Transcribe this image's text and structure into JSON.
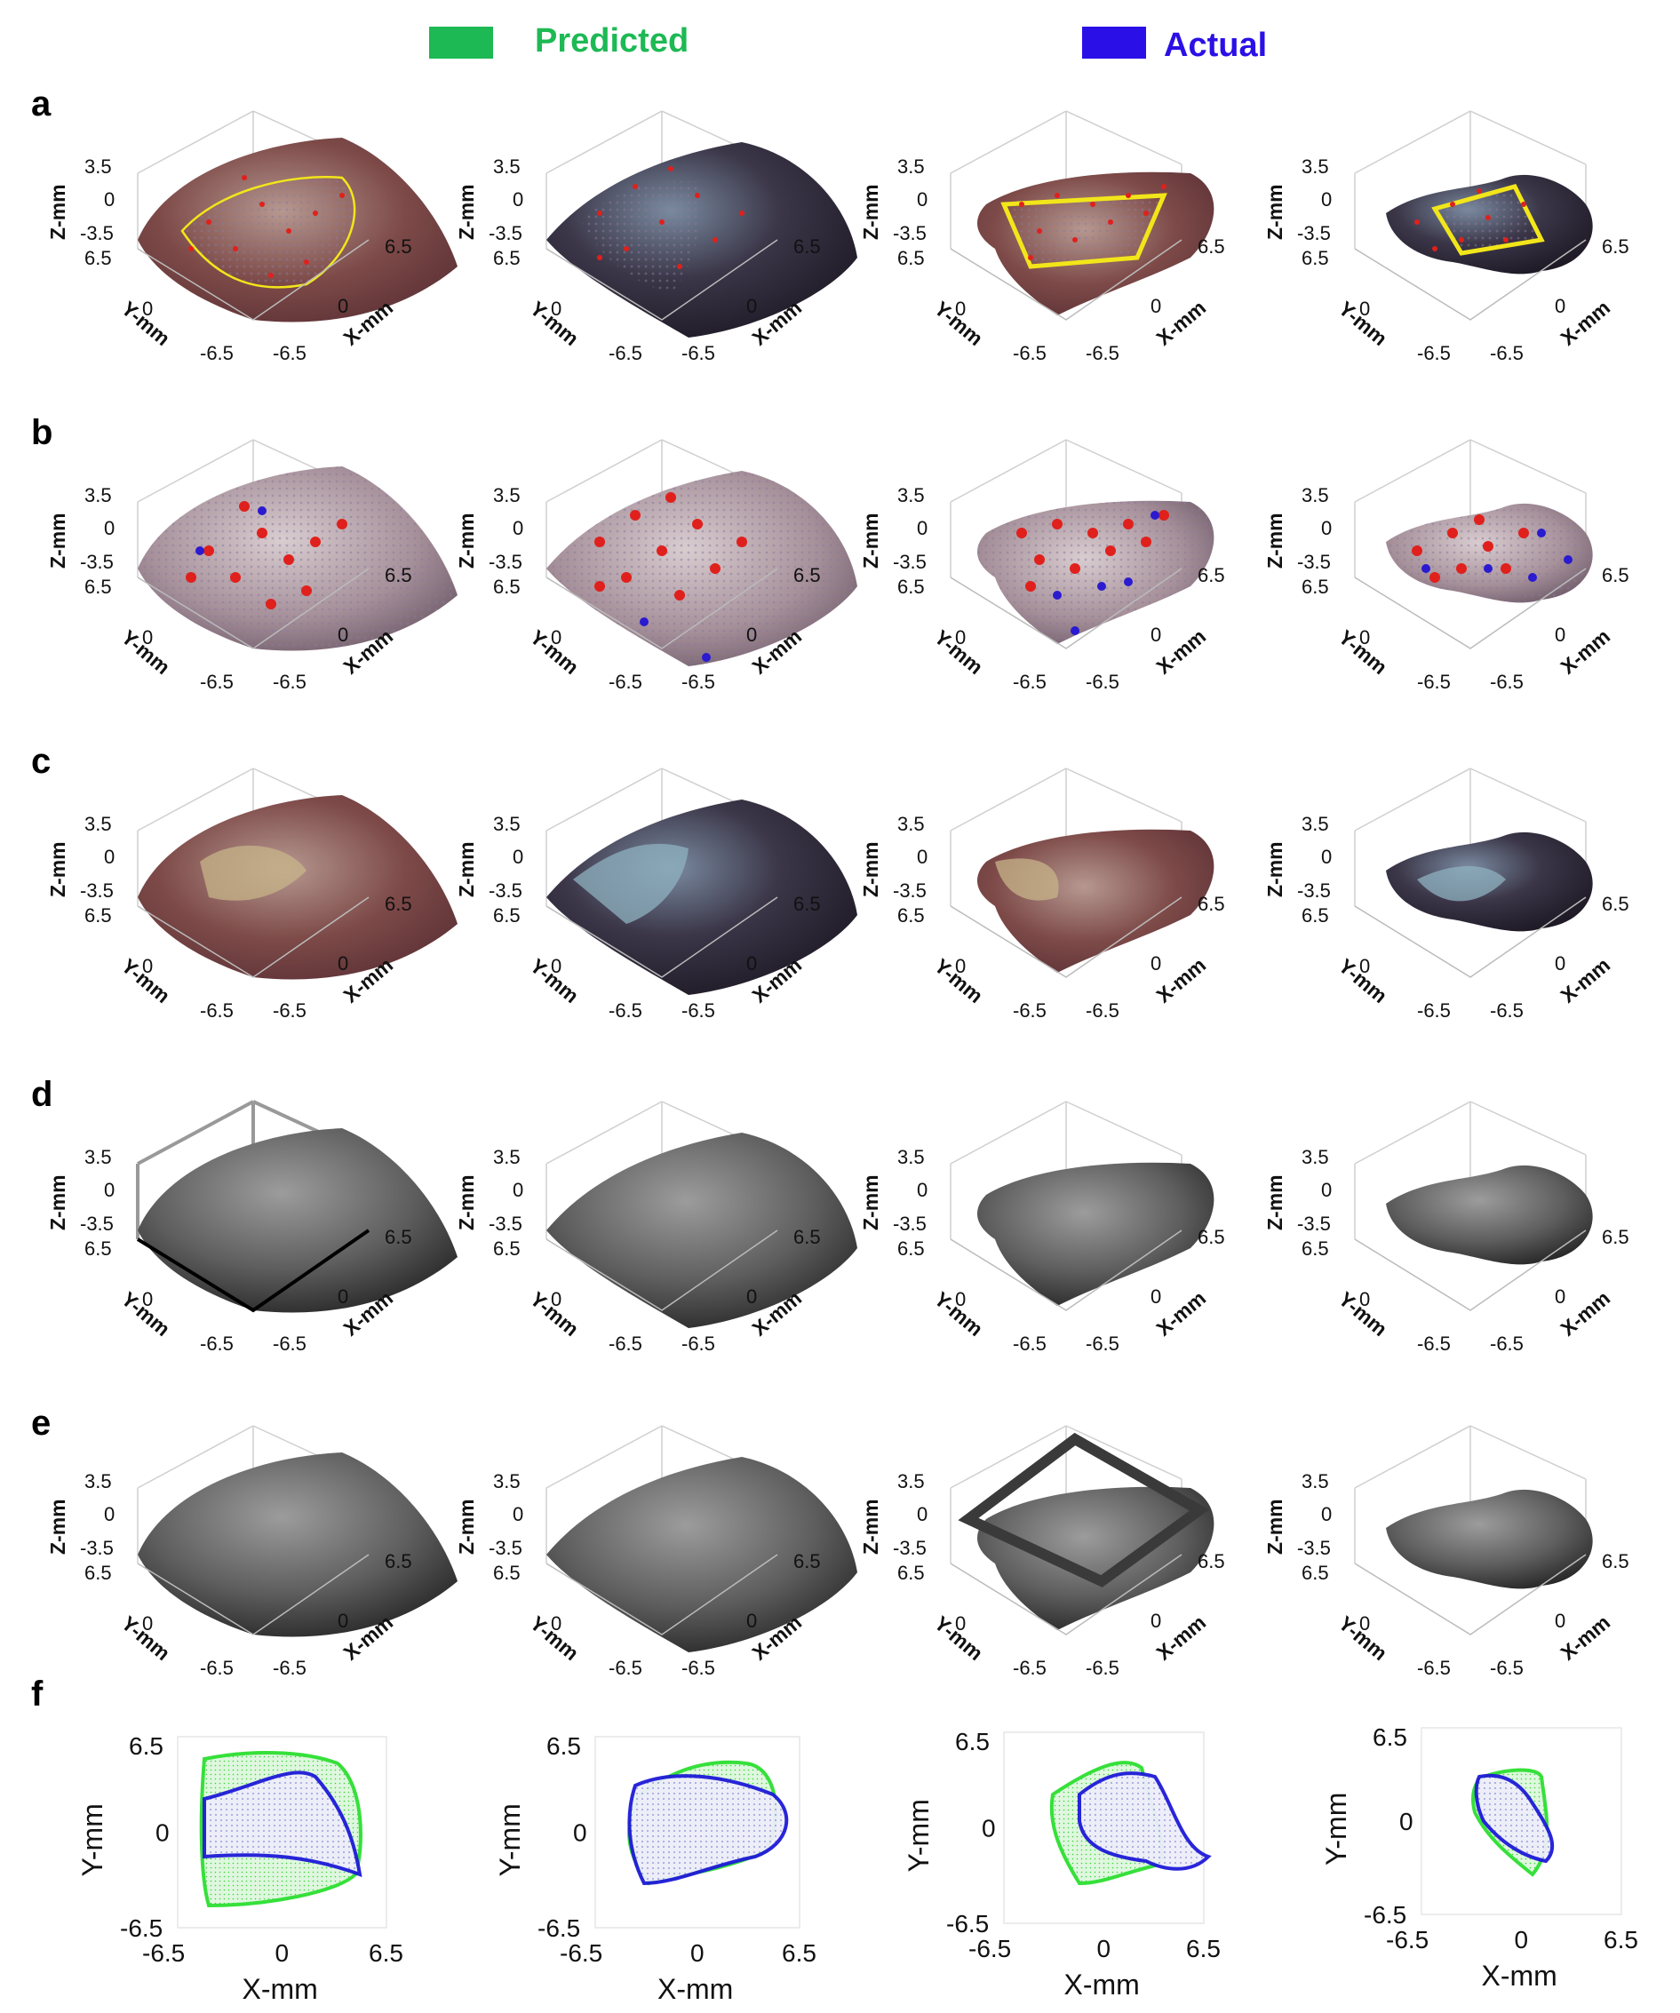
{
  "legend": {
    "predicted": {
      "label": "Predicted",
      "color": "#1db954"
    },
    "actual": {
      "label": "Actual",
      "color": "#2a10e6"
    }
  },
  "rows": [
    {
      "letter": "a",
      "style": "color-with-outline"
    },
    {
      "letter": "b",
      "style": "color-with-dots"
    },
    {
      "letter": "c",
      "style": "color-surface"
    },
    {
      "letter": "d",
      "style": "grayscale"
    },
    {
      "letter": "e",
      "style": "grayscale"
    },
    {
      "letter": "f",
      "style": "2d-outline"
    }
  ],
  "axes3d": {
    "z_label": "Z-mm",
    "y_label": "Y-mm",
    "x_label": "X-mm",
    "z_ticks": [
      "3.5",
      "0",
      "-3.5"
    ],
    "y_ticks": [
      "6.5",
      "0",
      "-6.5"
    ],
    "x_ticks": [
      "6.5",
      "0",
      "-6.5"
    ]
  },
  "axes2d": {
    "x_label": "X-mm",
    "y_label": "Y-mm",
    "x_ticks": [
      "-6.5",
      "0",
      "6.5"
    ],
    "y_ticks": [
      "6.5",
      "0",
      "-6.5"
    ]
  },
  "colors": {
    "tissue_red": "#7a3a3a",
    "tissue_dark": "#3a3040",
    "tissue_gray": "#5a5a5a",
    "dot_red": "#e0201c",
    "dot_blue": "#2a1ad0",
    "outline_yellow": "#f2e61a",
    "region_green": "#36e03a",
    "region_blue": "#1e1ad8"
  }
}
